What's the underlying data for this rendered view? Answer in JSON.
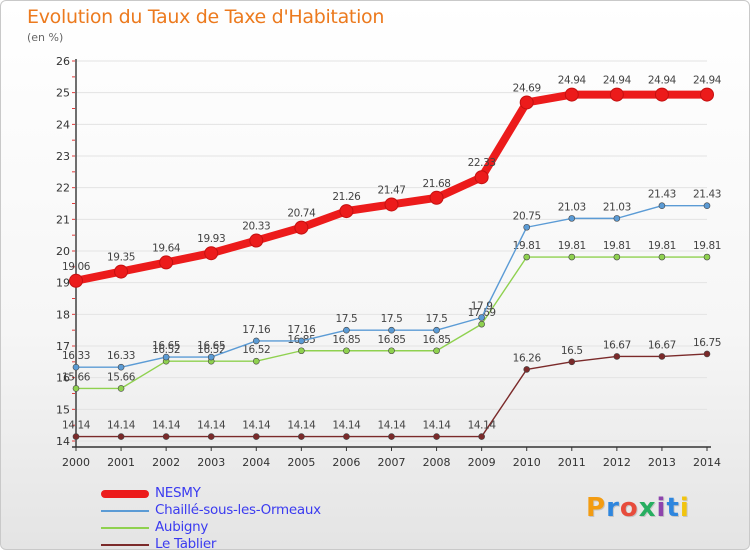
{
  "title": "Evolution du Taux de Taxe d'Habitation",
  "unit": "(en %)",
  "logo": "Proxiti",
  "colors": {
    "title": "#ec7a1e",
    "axis": "#333333",
    "grid": "#e3e3e3",
    "legend_text": "#3b3bf0"
  },
  "chart_data": {
    "type": "line",
    "title": "Evolution du Taux de Taxe d'Habitation",
    "ylabel": "(en %)",
    "xlabel": "",
    "x": [
      "2000",
      "2001",
      "2002",
      "2003",
      "2004",
      "2005",
      "2006",
      "2007",
      "2008",
      "2009",
      "2010",
      "2011",
      "2012",
      "2013",
      "2014"
    ],
    "ylim": [
      14,
      26
    ],
    "yticks": [
      "14",
      "15",
      "16",
      "17",
      "18",
      "19",
      "20",
      "21",
      "22",
      "23",
      "24",
      "25",
      "26"
    ],
    "grid": true,
    "legend_position": "bottom-left",
    "series": [
      {
        "name": "NESMY",
        "color": "#ec1b1b",
        "style": "thick",
        "values": [
          19.06,
          19.35,
          19.64,
          19.93,
          20.33,
          20.74,
          21.26,
          21.47,
          21.68,
          22.33,
          24.69,
          24.94,
          24.94,
          24.94,
          24.94
        ],
        "labels": [
          "19.06",
          "19.35",
          "19.64",
          "19.93",
          "20.33",
          "20.74",
          "21.26",
          "21.47",
          "21.68",
          "22.33",
          "24.69",
          "24.94",
          "24.94",
          "24.94",
          "24.94"
        ]
      },
      {
        "name": "Chaillé-sous-les-Ormeaux",
        "color": "#5b9bd5",
        "style": "normal",
        "values": [
          16.33,
          16.33,
          16.65,
          16.65,
          17.16,
          17.16,
          17.5,
          17.5,
          17.5,
          17.9,
          20.75,
          21.03,
          21.03,
          21.43,
          21.43
        ],
        "labels": [
          "16.33",
          "16.33",
          "16.65",
          "16.65",
          "17.16",
          "17.16",
          "17.5",
          "17.5",
          "17.5",
          "17.9",
          "20.75",
          "21.03",
          "21.03",
          "21.43",
          "21.43"
        ]
      },
      {
        "name": "Aubigny",
        "color": "#8fd14f",
        "style": "normal",
        "values": [
          15.66,
          15.66,
          16.52,
          16.52,
          16.52,
          16.85,
          16.85,
          16.85,
          16.85,
          17.69,
          19.81,
          19.81,
          19.81,
          19.81,
          19.81
        ],
        "labels": [
          "15.66",
          "15.66",
          "16.52",
          "16.52",
          "16.52",
          "16.85",
          "16.85",
          "16.85",
          "16.85",
          "17.69",
          "19.81",
          "19.81",
          "19.81",
          "19.81",
          "19.81"
        ]
      },
      {
        "name": "Le Tablier",
        "color": "#7b2a2a",
        "style": "normal",
        "values": [
          14.14,
          14.14,
          14.14,
          14.14,
          14.14,
          14.14,
          14.14,
          14.14,
          14.14,
          14.14,
          16.26,
          16.5,
          16.67,
          16.67,
          16.75
        ],
        "labels": [
          "14.14",
          "14.14",
          "14.14",
          "14.14",
          "14.14",
          "14.14",
          "14.14",
          "14.14",
          "14.14",
          "14.14",
          "16.26",
          "16.5",
          "16.67",
          "16.67",
          "16.75"
        ]
      }
    ]
  }
}
